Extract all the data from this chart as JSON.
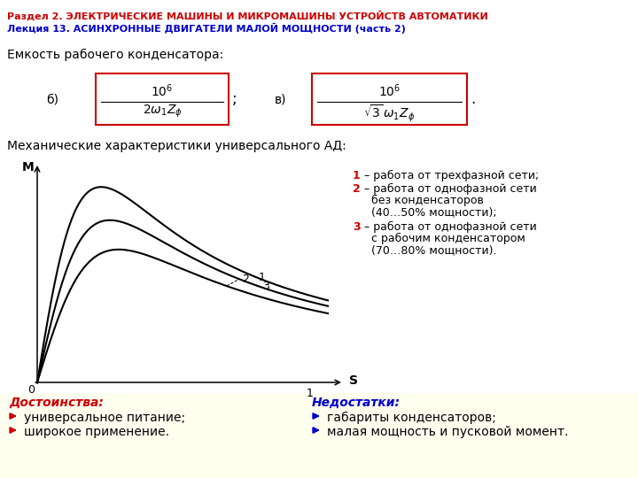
{
  "title1": "Раздел 2. ЭЛЕКТРИЧЕСКИЕ МАШИНЫ И МИКРОМАШИНЫ УСТРОЙСТВ АВТОМАТИКИ",
  "title2": "Лекция 13. АСИНХРОННЫЕ ДВИГАТЕЛИ МАЛОЙ МОЩНОСТИ (часть 2)",
  "title1_color": "#cc0000",
  "title2_color": "#0000cc",
  "cap_label": "Емкость рабочего конденсатора:",
  "mech_label": "Механические характеристики универсального АД:",
  "legend1_num": "1",
  "legend1_txt": " – работа от трехфазной сети;",
  "legend2_num": "2",
  "legend2_txt": " – работа от однофазной сети",
  "legend2b": "без конденсаторов",
  "legend2c": "(40…50% мощности);",
  "legend3_num": "3",
  "legend3_txt": " – работа от однофазной сети",
  "legend3b": "с рабочим конденсатором",
  "legend3c": "(70…80% мощности).",
  "num_color": "#cc0000",
  "adv_title": "Достоинства:",
  "adv_color": "#cc0000",
  "adv1": "универсальное питание;",
  "adv2": "широкое применение.",
  "dis_title": "Недостатки:",
  "dis_color": "#0000cc",
  "dis1": "габариты конденсаторов;",
  "dis2": "малая мощность и пусковой момент.",
  "bg_color": "#ffffff",
  "bottom_bg": "#fffff0",
  "box_color": "#cc0000"
}
